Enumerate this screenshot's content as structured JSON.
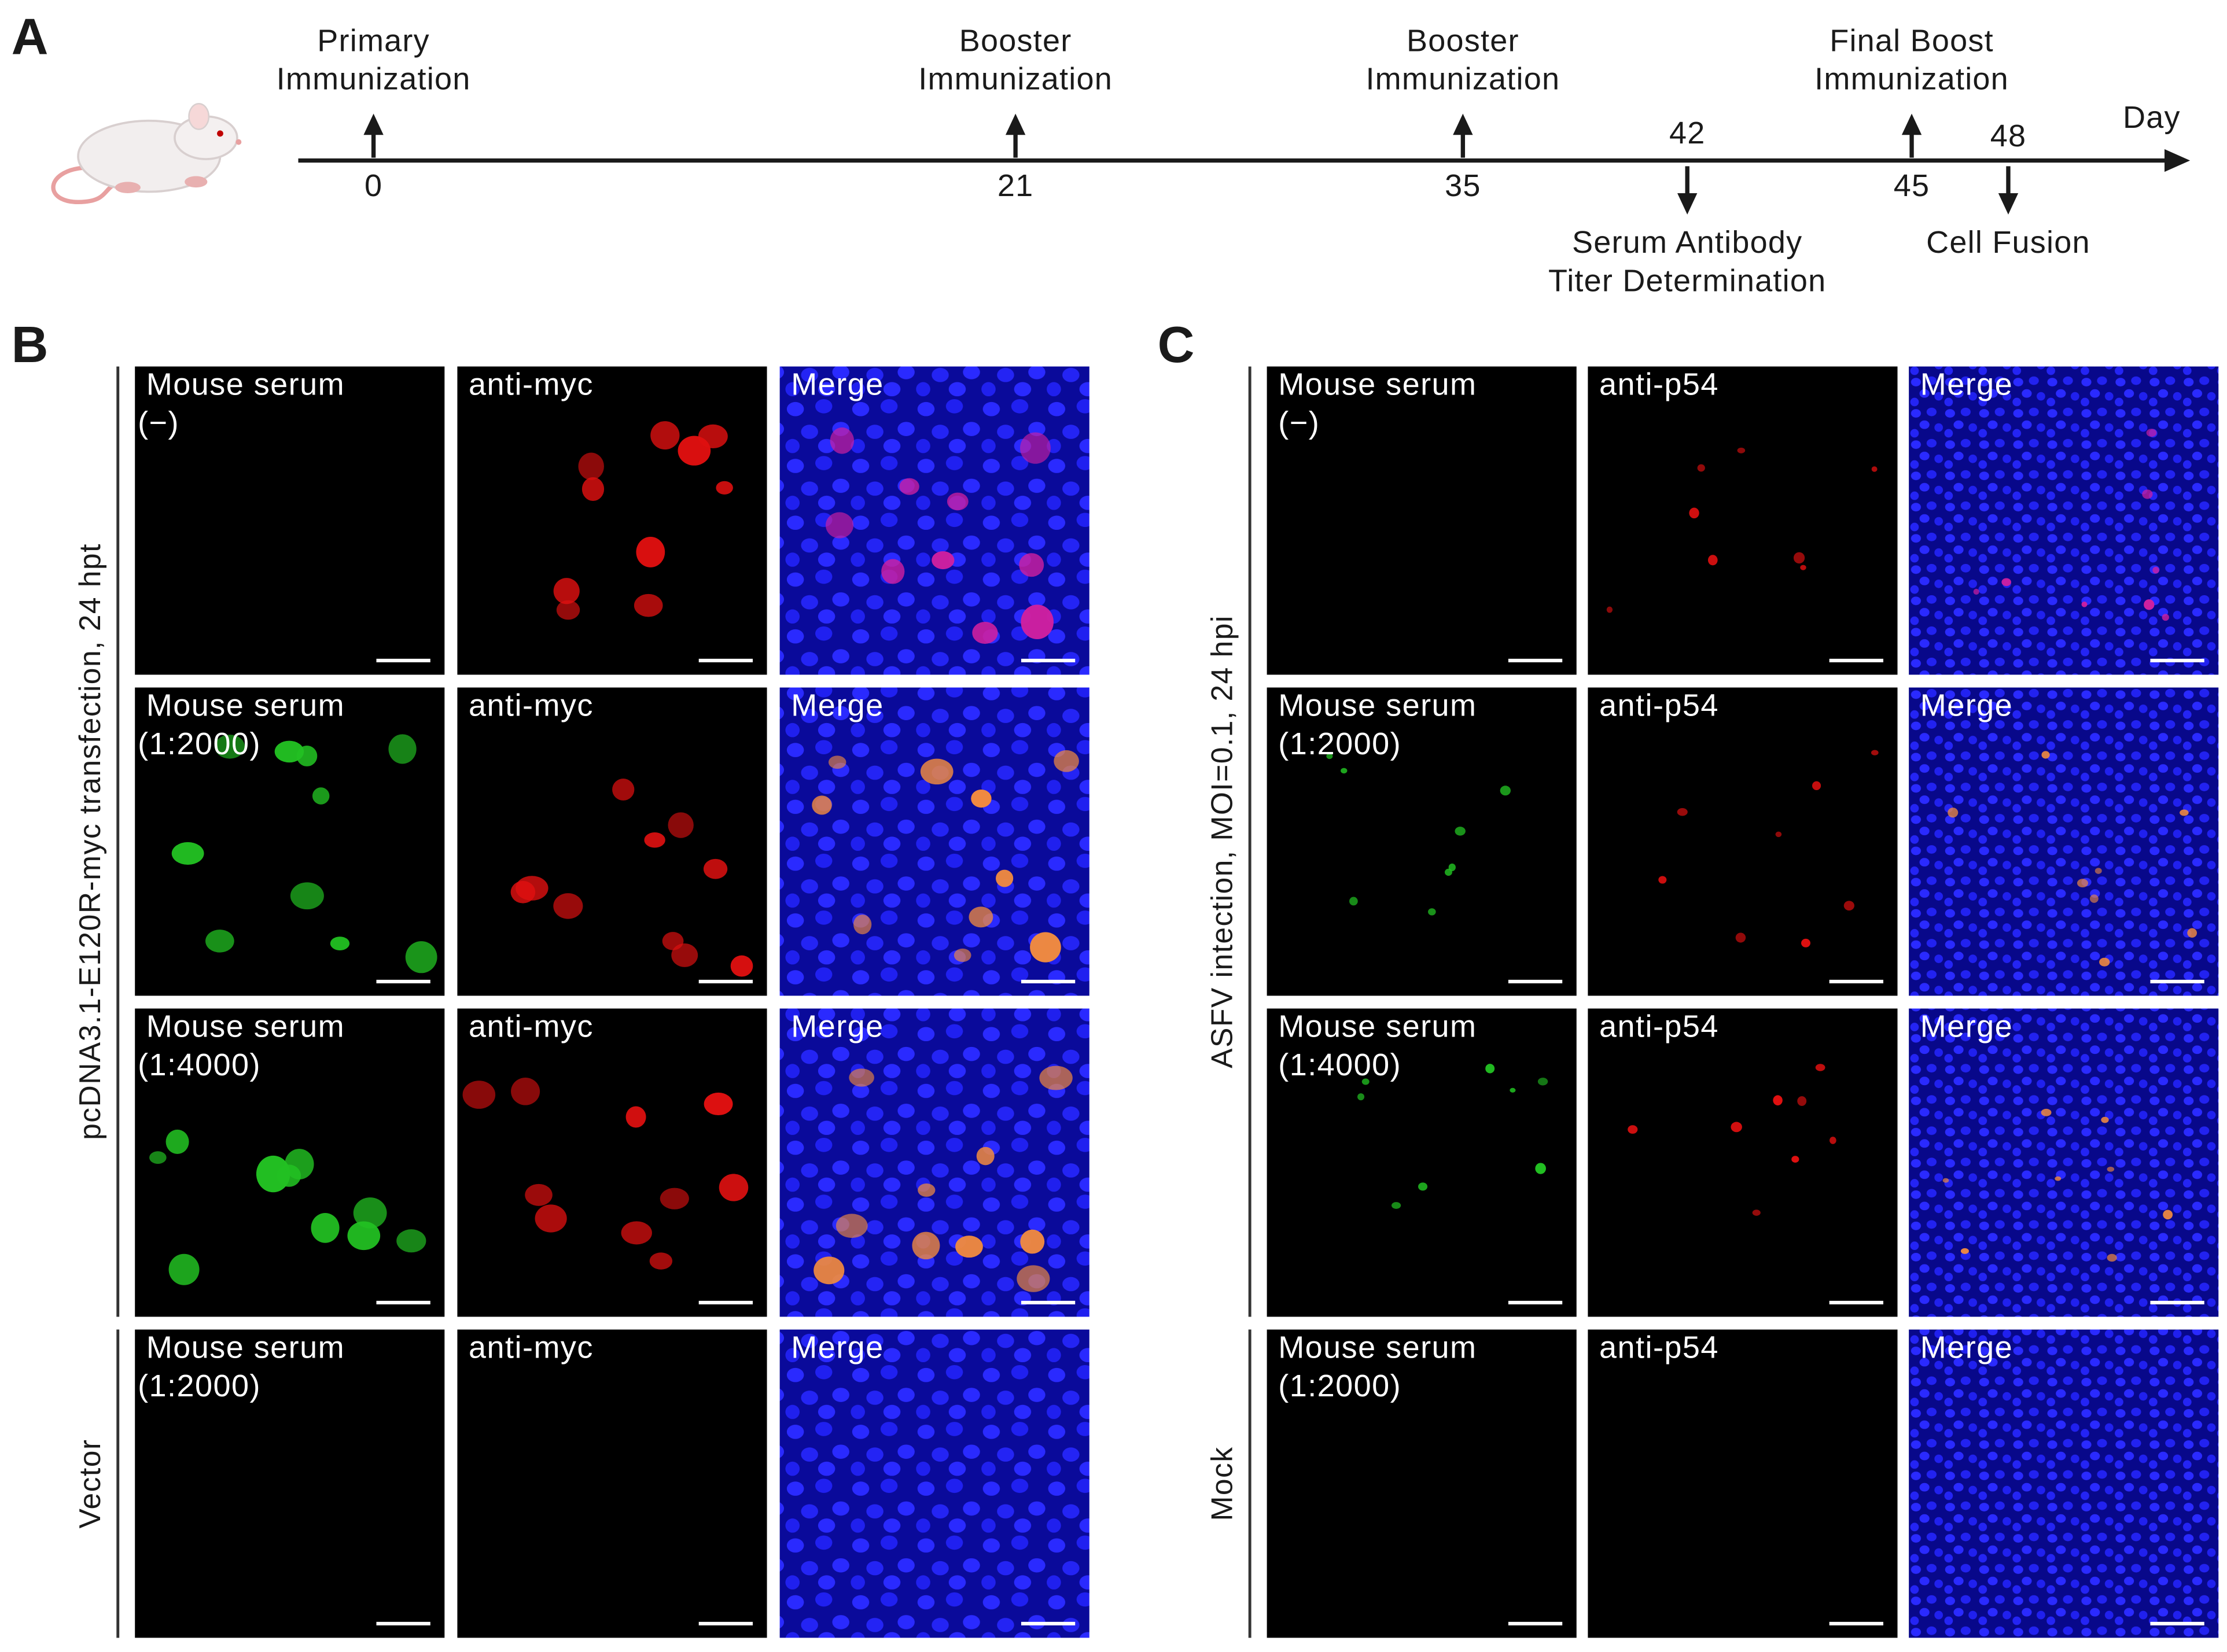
{
  "panel_a": {
    "letter": "A",
    "axis_label": "Day",
    "events_above": [
      {
        "day": "0",
        "label": [
          "Primary",
          "Immunization"
        ]
      },
      {
        "day": "21",
        "label": [
          "Booster",
          "Immunization"
        ]
      },
      {
        "day": "35",
        "label": [
          "Booster",
          "Immunization"
        ]
      },
      {
        "day": "45",
        "label": [
          "Final Boost",
          "Immunization"
        ]
      }
    ],
    "events_below": [
      {
        "day": "42",
        "label": [
          "Serum Antibody",
          "Titer Determination"
        ]
      },
      {
        "day": "48",
        "label": [
          "Cell Fusion"
        ]
      }
    ]
  },
  "panel_b": {
    "letter": "B",
    "groups": [
      {
        "label": "pcDNA3.1-E120R-myc transfection, 24 hpt",
        "rows": [
          [
            [
              "Mouse serum",
              "(−)"
            ],
            [
              "anti-myc"
            ],
            [
              "Merge"
            ]
          ],
          [
            [
              "Mouse serum",
              "(1:2000)"
            ],
            [
              "anti-myc"
            ],
            [
              "Merge"
            ]
          ],
          [
            [
              "Mouse serum",
              "(1:4000)"
            ],
            [
              "anti-myc"
            ],
            [
              "Merge"
            ]
          ]
        ]
      },
      {
        "label": "Vector",
        "rows": [
          [
            [
              "Mouse serum",
              "(1:2000)"
            ],
            [
              "anti-myc"
            ],
            [
              "Merge"
            ]
          ]
        ]
      }
    ]
  },
  "panel_c": {
    "letter": "C",
    "groups": [
      {
        "label": "ASFV  intection, MOI=0.1, 24 hpi",
        "rows": [
          [
            [
              "Mouse serum",
              "(−)"
            ],
            [
              "anti-p54"
            ],
            [
              "Merge"
            ]
          ],
          [
            [
              "Mouse serum",
              "(1:2000)"
            ],
            [
              "anti-p54"
            ],
            [
              "Merge"
            ]
          ],
          [
            [
              "Mouse serum",
              "(1:4000)"
            ],
            [
              "anti-p54"
            ],
            [
              "Merge"
            ]
          ]
        ]
      },
      {
        "label": "Mock",
        "rows": [
          [
            [
              "Mouse serum",
              "(1:2000)"
            ],
            [
              "anti-p54"
            ],
            [
              "Merge"
            ]
          ]
        ]
      }
    ]
  }
}
